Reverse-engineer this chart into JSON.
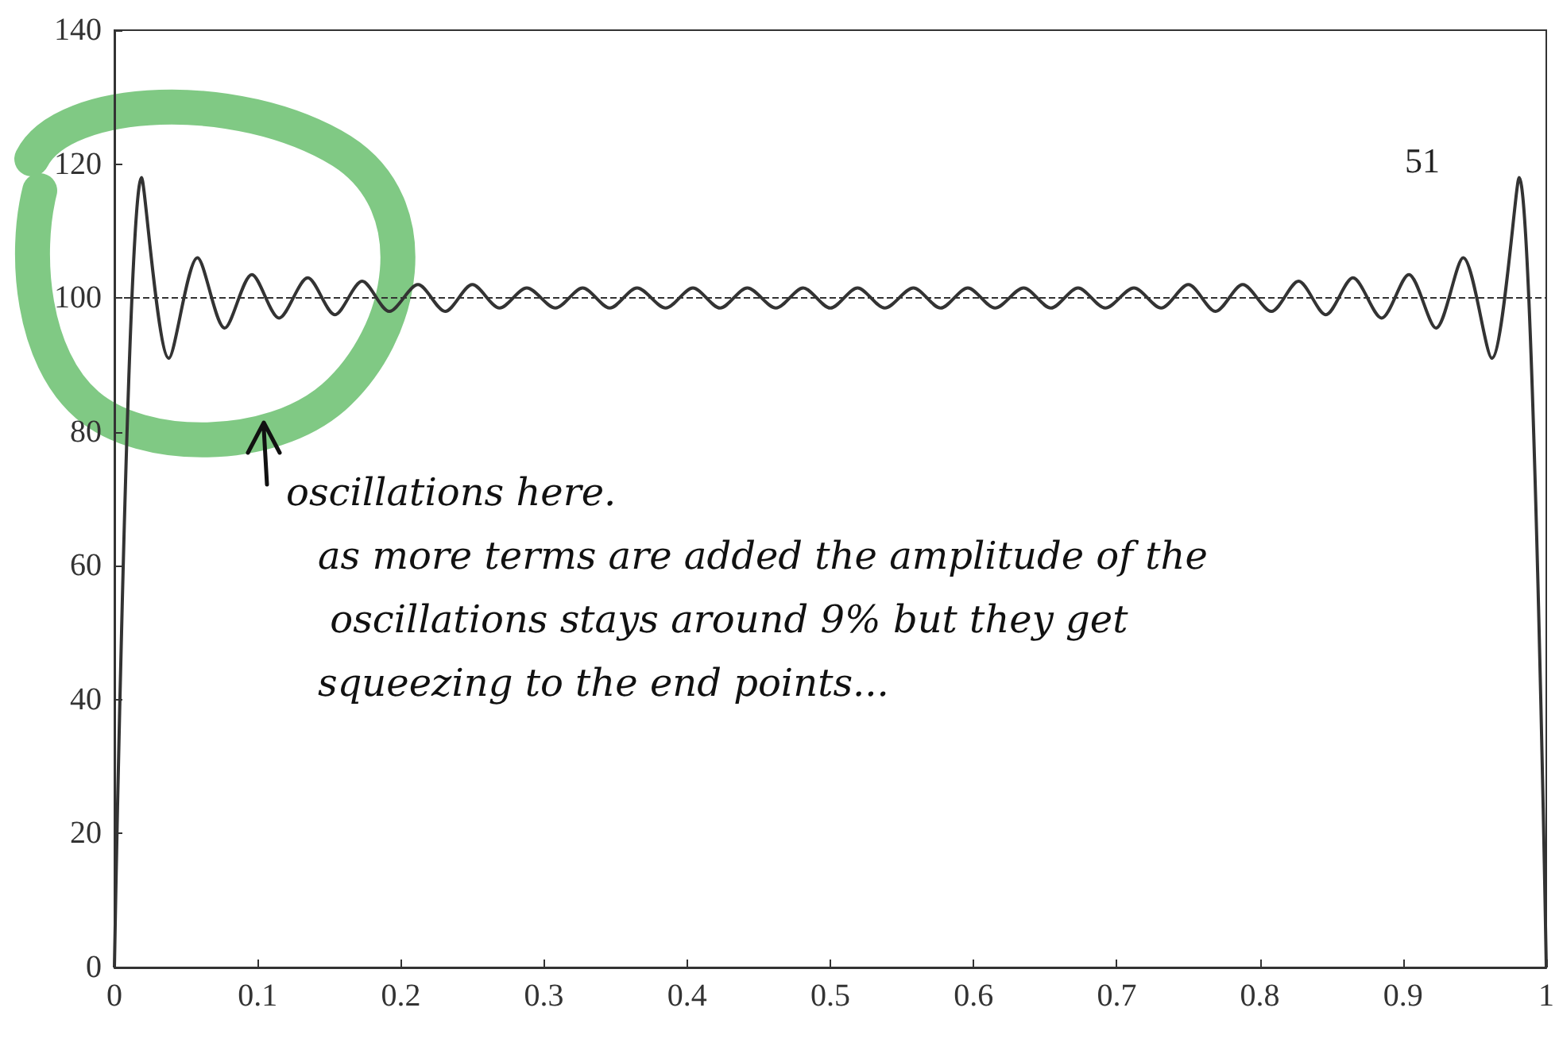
{
  "chart_data": {
    "type": "line",
    "x": [
      0,
      0.019,
      0.038,
      0.058,
      0.077,
      0.096,
      0.115,
      0.135,
      0.154,
      0.173,
      0.192,
      0.212,
      0.231,
      0.25,
      0.269,
      0.288,
      0.308,
      0.327,
      0.346,
      0.365,
      0.385,
      0.404,
      0.423,
      0.442,
      0.462,
      0.481,
      0.5,
      0.519,
      0.538,
      0.558,
      0.577,
      0.596,
      0.615,
      0.635,
      0.654,
      0.673,
      0.692,
      0.712,
      0.731,
      0.75,
      0.769,
      0.788,
      0.808,
      0.827,
      0.846,
      0.865,
      0.885,
      0.904,
      0.923,
      0.942,
      0.962,
      0.981,
      1
    ],
    "series": [
      {
        "color": "#333333",
        "values": [
          0,
          118,
          91,
          106,
          95.5,
          103.5,
          97,
          103,
          97.5,
          102.5,
          98,
          102,
          98,
          102,
          98.5,
          101.5,
          98.5,
          101.5,
          98.5,
          101.5,
          98.5,
          101.5,
          98.5,
          101.5,
          98.5,
          101.5,
          98.5,
          101.5,
          98.5,
          101.5,
          98.5,
          101.5,
          98.5,
          101.5,
          98.5,
          101.5,
          98.5,
          101.5,
          98.5,
          102,
          98,
          102,
          98,
          102.5,
          97.5,
          103,
          97,
          103.5,
          95.5,
          106,
          91,
          118,
          0
        ]
      }
    ],
    "xlim": [
      0,
      1
    ],
    "xticks": [
      0,
      0.1,
      0.2,
      0.3,
      0.4,
      0.5,
      0.6,
      0.7,
      0.8,
      0.9,
      1
    ],
    "ylim": [
      0,
      140
    ],
    "yticks": [
      0,
      20,
      40,
      60,
      80,
      100,
      120,
      140
    ],
    "ref_lines": [
      {
        "axis": "y",
        "value": 100,
        "line_style": "dashed",
        "color": "#333333"
      }
    ],
    "annotations": [
      "51",
      "oscillations here.",
      "as more terms are added the amplitude of the oscillations stays around 9% but they get squeezing to the end points..."
    ]
  }
}
